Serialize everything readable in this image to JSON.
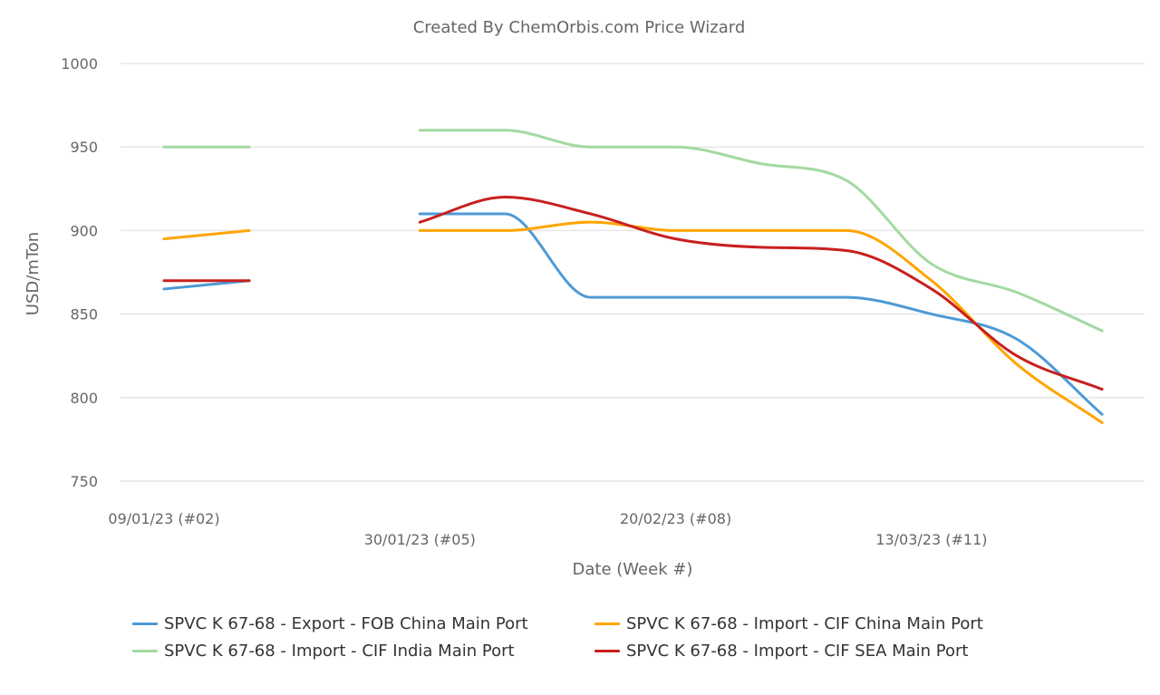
{
  "chart": {
    "title": "Created By ChemOrbis.com Price Wizard",
    "ylabel": "USD/mTon",
    "xlabel": "Date (Week #)"
  },
  "chart_data": {
    "type": "line",
    "title": "Created By ChemOrbis.com Price Wizard",
    "xlabel": "Date (Week #)",
    "ylabel": "USD/mTon",
    "ylim": [
      750,
      1000
    ],
    "yticks": [
      750,
      800,
      850,
      900,
      950,
      1000
    ],
    "grid": true,
    "legend_position": "bottom",
    "x_tick_labels": [
      "09/01/23 (#02)",
      "30/01/23 (#05)",
      "20/02/23 (#08)",
      "13/03/23 (#11)"
    ],
    "x": [
      "#02",
      "#03",
      "#04",
      "#05",
      "#06",
      "#07",
      "#08",
      "#09",
      "#10",
      "#11",
      "#12",
      "#13"
    ],
    "series": [
      {
        "name": "SPVC K 67-68 - Export - FOB China Main Port",
        "color": "#4e9ad6",
        "values": [
          865,
          870,
          null,
          910,
          910,
          860,
          860,
          860,
          860,
          850,
          835,
          790
        ]
      },
      {
        "name": "SPVC K 67-68 - Import - CIF China Main Port",
        "color": "#ffa500",
        "values": [
          895,
          900,
          null,
          900,
          900,
          905,
          900,
          900,
          900,
          870,
          820,
          785
        ]
      },
      {
        "name": "SPVC K 67-68 - Import - CIF India Main Port",
        "color": "#a3d9a1",
        "values": [
          950,
          950,
          null,
          960,
          960,
          950,
          950,
          940,
          930,
          880,
          863,
          840
        ]
      },
      {
        "name": "SPVC K 67-68 - Import - CIF SEA Main Port",
        "color": "#c8201f",
        "values": [
          870,
          870,
          null,
          905,
          920,
          910,
          895,
          890,
          888,
          865,
          825,
          805
        ]
      }
    ]
  },
  "legend": {
    "items": [
      {
        "label": "SPVC K 67-68 - Export - FOB China Main Port",
        "color": "#4e9ad6"
      },
      {
        "label": "SPVC K 67-68 - Import - CIF China Main Port",
        "color": "#ffa500"
      },
      {
        "label": "SPVC K 67-68 - Import - CIF India Main Port",
        "color": "#a3d9a1"
      },
      {
        "label": "SPVC K 67-68 - Import - CIF SEA Main Port",
        "color": "#c8201f"
      }
    ]
  }
}
